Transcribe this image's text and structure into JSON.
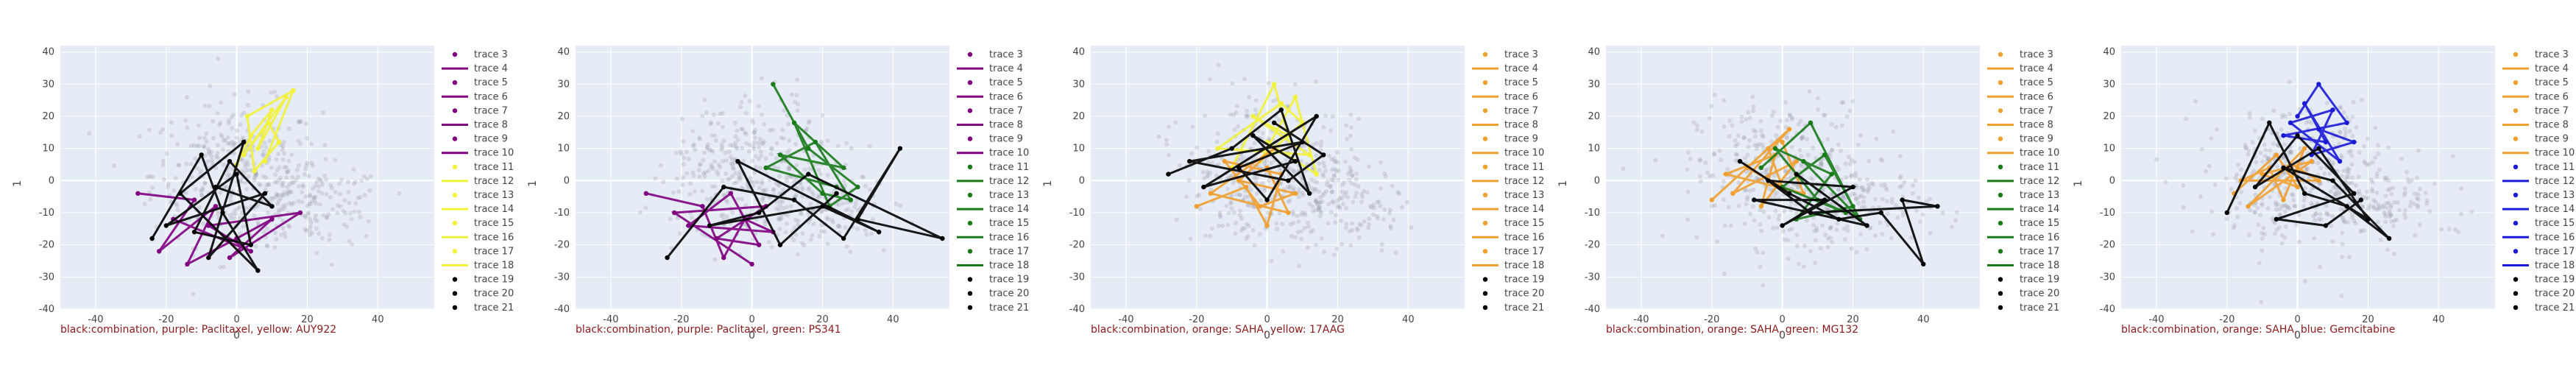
{
  "axes": {
    "x_ticks": [
      -40,
      -20,
      0,
      20,
      40
    ],
    "y_ticks": [
      -40,
      -30,
      -20,
      -10,
      0,
      10,
      20,
      30,
      40
    ],
    "xlabel": "0",
    "ylabel": "1",
    "xlim": [
      -50,
      56
    ],
    "ylim": [
      -40,
      42
    ]
  },
  "legend_labels": [
    "trace 3",
    "trace 4",
    "trace 5",
    "trace 6",
    "trace 7",
    "trace 8",
    "trace 9",
    "trace 10",
    "trace 11",
    "trace 12",
    "trace 13",
    "trace 14",
    "trace 15",
    "trace 16",
    "trace 17",
    "trace 18",
    "trace 19",
    "trace 20",
    "trace 21"
  ],
  "colors": {
    "background": "#e5ecf6",
    "grid": "#ffffff",
    "caption": "#8b1a1a",
    "cloud": "#9a9aa8",
    "black": "#000000",
    "purple": "#800080",
    "yellow": "#f2f23a",
    "green": "#1a7a1a",
    "orange": "#f0a030",
    "blue": "#1a1ad8"
  },
  "chart_data": [
    {
      "type": "scatter",
      "title": "black:combination, purple: Paclitaxel, yellow: AUY922",
      "legend_colors": [
        "purple",
        "purple",
        "purple",
        "purple",
        "purple",
        "purple",
        "purple",
        "purple",
        "yellow",
        "yellow",
        "yellow",
        "yellow",
        "yellow",
        "yellow",
        "yellow",
        "yellow",
        "black",
        "black",
        "black"
      ],
      "series": [
        {
          "color": "yellow",
          "points": [
            [
              0,
              5
            ],
            [
              4,
              14
            ],
            [
              10,
              22
            ],
            [
              6,
              10
            ],
            [
              14,
              26
            ],
            [
              2,
              8
            ],
            [
              9,
              18
            ],
            [
              12,
              12
            ],
            [
              5,
              3
            ],
            [
              3,
              20
            ],
            [
              16,
              28
            ],
            [
              8,
              6
            ]
          ]
        },
        {
          "color": "purple",
          "points": [
            [
              -28,
              -4
            ],
            [
              -12,
              -6
            ],
            [
              -22,
              -22
            ],
            [
              -6,
              -8
            ],
            [
              -14,
              -26
            ],
            [
              0,
              -18
            ],
            [
              10,
              -12
            ],
            [
              -2,
              -24
            ],
            [
              18,
              -10
            ],
            [
              -8,
              -14
            ],
            [
              4,
              -22
            ],
            [
              -18,
              -12
            ]
          ]
        },
        {
          "color": "black",
          "points": [
            [
              -24,
              -18
            ],
            [
              -10,
              8
            ],
            [
              -4,
              -10
            ],
            [
              6,
              -28
            ],
            [
              -16,
              -4
            ],
            [
              2,
              12
            ],
            [
              -8,
              -24
            ],
            [
              8,
              -4
            ],
            [
              -20,
              -14
            ],
            [
              0,
              2
            ],
            [
              4,
              -20
            ],
            [
              -12,
              -16
            ],
            [
              -2,
              6
            ],
            [
              10,
              -8
            ],
            [
              -6,
              -2
            ]
          ]
        }
      ]
    },
    {
      "type": "scatter",
      "title": "black:combination, purple: Paclitaxel, green: PS341",
      "legend_colors": [
        "purple",
        "purple",
        "purple",
        "purple",
        "purple",
        "purple",
        "purple",
        "purple",
        "green",
        "green",
        "green",
        "green",
        "green",
        "green",
        "green",
        "green",
        "black",
        "black",
        "black"
      ],
      "series": [
        {
          "color": "green",
          "points": [
            [
              6,
              30
            ],
            [
              16,
              10
            ],
            [
              30,
              -2
            ],
            [
              22,
              -8
            ],
            [
              12,
              18
            ],
            [
              26,
              4
            ],
            [
              8,
              8
            ],
            [
              20,
              -4
            ],
            [
              28,
              -6
            ],
            [
              18,
              12
            ],
            [
              4,
              4
            ],
            [
              24,
              -2
            ]
          ]
        },
        {
          "color": "purple",
          "points": [
            [
              -30,
              -4
            ],
            [
              -14,
              -8
            ],
            [
              -8,
              -24
            ],
            [
              -2,
              -12
            ],
            [
              6,
              -16
            ],
            [
              -18,
              -14
            ],
            [
              -6,
              -4
            ],
            [
              2,
              -20
            ],
            [
              -10,
              -18
            ],
            [
              4,
              -8
            ],
            [
              -22,
              -10
            ],
            [
              0,
              -26
            ]
          ]
        },
        {
          "color": "black",
          "points": [
            [
              -24,
              -24
            ],
            [
              -8,
              -2
            ],
            [
              12,
              -6
            ],
            [
              26,
              -18
            ],
            [
              42,
              10
            ],
            [
              30,
              -12
            ],
            [
              54,
              -18
            ],
            [
              16,
              2
            ],
            [
              2,
              -10
            ],
            [
              -12,
              -14
            ],
            [
              20,
              -8
            ],
            [
              36,
              -16
            ],
            [
              -4,
              6
            ],
            [
              8,
              -20
            ],
            [
              24,
              -4
            ]
          ]
        }
      ]
    },
    {
      "type": "scatter",
      "title": "black:combination, orange: SAHA, yellow: 17AAG",
      "legend_colors": [
        "orange",
        "orange",
        "orange",
        "orange",
        "orange",
        "orange",
        "orange",
        "orange",
        "orange",
        "orange",
        "orange",
        "orange",
        "orange",
        "orange",
        "orange",
        "orange",
        "black",
        "black",
        "black"
      ],
      "series": [
        {
          "color": "yellow",
          "points": [
            [
              -10,
              4
            ],
            [
              2,
              30
            ],
            [
              6,
              14
            ],
            [
              -4,
              20
            ],
            [
              12,
              8
            ],
            [
              -14,
              10
            ],
            [
              4,
              24
            ],
            [
              10,
              18
            ],
            [
              -2,
              6
            ],
            [
              8,
              26
            ],
            [
              14,
              2
            ],
            [
              0,
              12
            ]
          ]
        },
        {
          "color": "orange",
          "points": [
            [
              -20,
              -8
            ],
            [
              -6,
              -2
            ],
            [
              0,
              -14
            ],
            [
              4,
              2
            ],
            [
              -12,
              6
            ],
            [
              -2,
              -8
            ],
            [
              8,
              -4
            ],
            [
              -8,
              0
            ],
            [
              2,
              10
            ],
            [
              -16,
              -4
            ],
            [
              6,
              -10
            ],
            [
              0,
              4
            ]
          ]
        },
        {
          "color": "black",
          "points": [
            [
              -28,
              2
            ],
            [
              -10,
              10
            ],
            [
              4,
              22
            ],
            [
              12,
              -4
            ],
            [
              -4,
              14
            ],
            [
              8,
              6
            ],
            [
              -18,
              -2
            ],
            [
              14,
              20
            ],
            [
              0,
              -6
            ],
            [
              -8,
              4
            ],
            [
              10,
              12
            ],
            [
              -22,
              6
            ],
            [
              6,
              0
            ],
            [
              16,
              8
            ],
            [
              2,
              18
            ]
          ]
        }
      ]
    },
    {
      "type": "scatter",
      "title": "black:combination, orange: SAHA, green: MG132",
      "legend_colors": [
        "orange",
        "orange",
        "orange",
        "orange",
        "orange",
        "orange",
        "orange",
        "orange",
        "green",
        "green",
        "green",
        "green",
        "green",
        "green",
        "green",
        "green",
        "black",
        "black",
        "black"
      ],
      "series": [
        {
          "color": "orange",
          "points": [
            [
              -20,
              -6
            ],
            [
              -4,
              10
            ],
            [
              0,
              -2
            ],
            [
              -10,
              4
            ],
            [
              2,
              16
            ],
            [
              -14,
              -4
            ],
            [
              4,
              6
            ],
            [
              -6,
              -8
            ],
            [
              -2,
              8
            ],
            [
              -16,
              2
            ],
            [
              6,
              -4
            ],
            [
              0,
              12
            ]
          ]
        },
        {
          "color": "green",
          "points": [
            [
              -6,
              4
            ],
            [
              8,
              18
            ],
            [
              20,
              -8
            ],
            [
              4,
              -12
            ],
            [
              14,
              2
            ],
            [
              -2,
              10
            ],
            [
              10,
              -6
            ],
            [
              18,
              -10
            ],
            [
              0,
              -2
            ],
            [
              12,
              8
            ],
            [
              22,
              -12
            ],
            [
              6,
              6
            ]
          ]
        },
        {
          "color": "black",
          "points": [
            [
              -12,
              6
            ],
            [
              2,
              -4
            ],
            [
              16,
              -12
            ],
            [
              28,
              -10
            ],
            [
              40,
              -26
            ],
            [
              34,
              -6
            ],
            [
              44,
              -8
            ],
            [
              8,
              -10
            ],
            [
              -4,
              0
            ],
            [
              20,
              -2
            ],
            [
              0,
              -14
            ],
            [
              12,
              -6
            ],
            [
              -8,
              -6
            ],
            [
              24,
              -14
            ],
            [
              4,
              2
            ]
          ]
        }
      ]
    },
    {
      "type": "scatter",
      "title": "black:combination, orange: SAHA, blue: Gemcitabine",
      "legend_colors": [
        "orange",
        "orange",
        "orange",
        "orange",
        "orange",
        "orange",
        "orange",
        "orange",
        "blue",
        "blue",
        "blue",
        "blue",
        "blue",
        "blue",
        "blue",
        "blue",
        "black",
        "black",
        "black"
      ],
      "series": [
        {
          "color": "orange",
          "points": [
            [
              -18,
              -4
            ],
            [
              -6,
              8
            ],
            [
              0,
              -2
            ],
            [
              -10,
              2
            ],
            [
              4,
              6
            ],
            [
              -14,
              -8
            ],
            [
              2,
              10
            ],
            [
              -4,
              -6
            ],
            [
              -8,
              4
            ],
            [
              -16,
              0
            ],
            [
              6,
              0
            ],
            [
              0,
              4
            ]
          ]
        },
        {
          "color": "blue",
          "points": [
            [
              0,
              20
            ],
            [
              6,
              30
            ],
            [
              14,
              18
            ],
            [
              -4,
              14
            ],
            [
              8,
              12
            ],
            [
              2,
              24
            ],
            [
              12,
              6
            ],
            [
              -2,
              18
            ],
            [
              10,
              22
            ],
            [
              4,
              8
            ],
            [
              16,
              12
            ],
            [
              6,
              16
            ]
          ]
        },
        {
          "color": "black",
          "points": [
            [
              -20,
              -10
            ],
            [
              -8,
              18
            ],
            [
              2,
              -4
            ],
            [
              14,
              -8
            ],
            [
              26,
              -18
            ],
            [
              10,
              0
            ],
            [
              -4,
              4
            ],
            [
              20,
              -12
            ],
            [
              6,
              10
            ],
            [
              -12,
              -2
            ],
            [
              0,
              14
            ],
            [
              16,
              -4
            ],
            [
              -6,
              -12
            ],
            [
              8,
              -14
            ],
            [
              18,
              -6
            ]
          ]
        }
      ]
    }
  ]
}
